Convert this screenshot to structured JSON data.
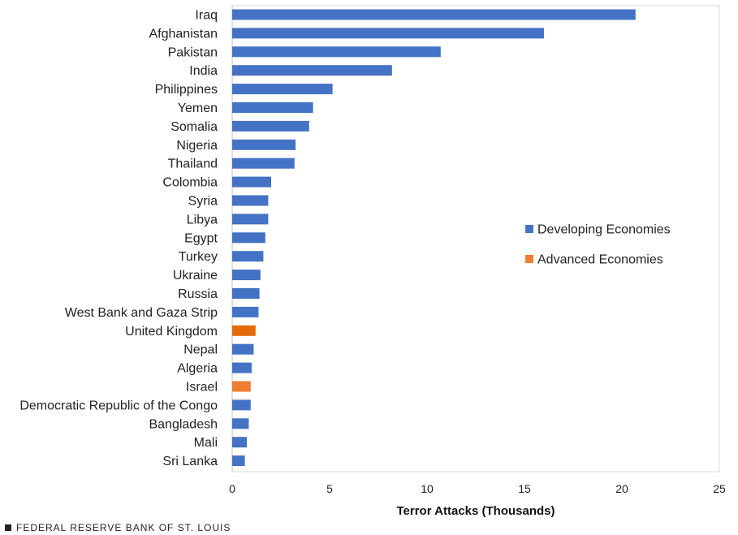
{
  "chart_data": {
    "type": "bar",
    "orientation": "horizontal",
    "categories": [
      "Iraq",
      "Afghanistan",
      "Pakistan",
      "India",
      "Philippines",
      "Yemen",
      "Somalia",
      "Nigeria",
      "Thailand",
      "Colombia",
      "Syria",
      "Libya",
      "Egypt",
      "Turkey",
      "Ukraine",
      "Russia",
      "West Bank and Gaza Strip",
      "United Kingdom",
      "Nepal",
      "Algeria",
      "Israel",
      "Democratic Republic of the Congo",
      "Bangladesh",
      "Mali",
      "Sri Lanka"
    ],
    "values": [
      20.7,
      16.0,
      10.7,
      8.2,
      5.15,
      4.15,
      3.95,
      3.25,
      3.2,
      2.0,
      1.85,
      1.85,
      1.7,
      1.6,
      1.45,
      1.4,
      1.35,
      1.2,
      1.1,
      1.0,
      0.95,
      0.95,
      0.85,
      0.75,
      0.65
    ],
    "groups": [
      "Developing Economies",
      "Developing Economies",
      "Developing Economies",
      "Developing Economies",
      "Developing Economies",
      "Developing Economies",
      "Developing Economies",
      "Developing Economies",
      "Developing Economies",
      "Developing Economies",
      "Developing Economies",
      "Developing Economies",
      "Developing Economies",
      "Developing Economies",
      "Developing Economies",
      "Developing Economies",
      "Developing Economies",
      "Advanced Economies",
      "Developing Economies",
      "Developing Economies",
      "Advanced Economies",
      "Developing Economies",
      "Developing Economies",
      "Developing Economies",
      "Developing Economies"
    ],
    "bar_colors": [
      "#4472c4",
      "#4472c4",
      "#4472c4",
      "#4472c4",
      "#4472c4",
      "#4472c4",
      "#4472c4",
      "#4472c4",
      "#4472c4",
      "#4472c4",
      "#4472c4",
      "#4472c4",
      "#4472c4",
      "#4472c4",
      "#4472c4",
      "#4472c4",
      "#4472c4",
      "#e36c0a",
      "#4472c4",
      "#4472c4",
      "#ed7d31",
      "#4472c4",
      "#4472c4",
      "#4472c4",
      "#4472c4"
    ],
    "legend": [
      {
        "name": "Developing Economies",
        "color": "#4472c4"
      },
      {
        "name": "Advanced Economies",
        "color": "#ed7d31"
      }
    ],
    "legend_position": "right-middle",
    "xlabel": "Terror Attacks (Thousands)",
    "xlim": [
      0,
      25
    ],
    "xticks": [
      "0",
      "5",
      "10",
      "15",
      "20",
      "25"
    ],
    "grid": false
  },
  "source": "FEDERAL RESERVE BANK OF ST. LOUIS"
}
